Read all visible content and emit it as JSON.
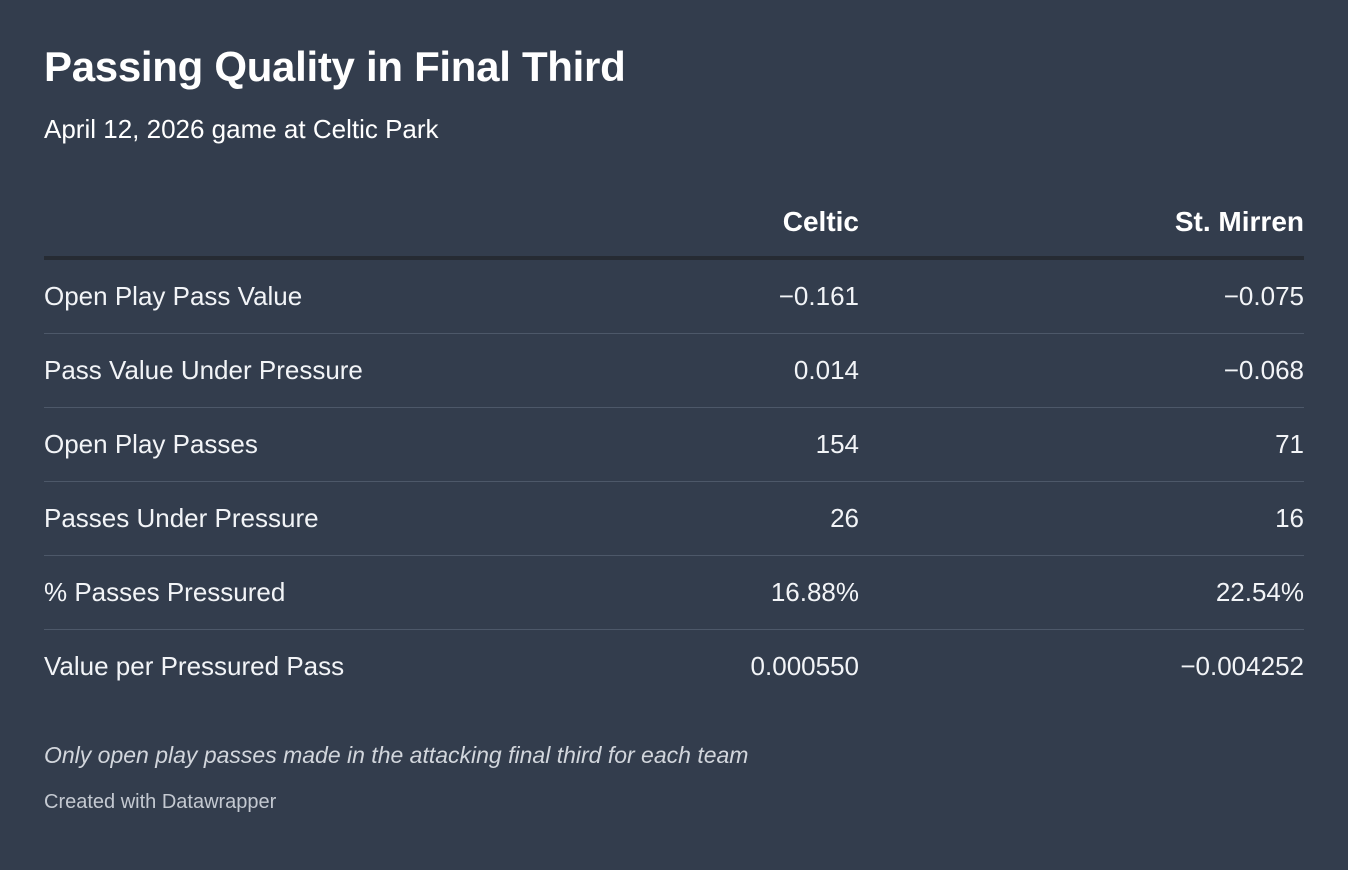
{
  "title": "Passing Quality in Final Third",
  "subtitle": "April 12, 2026 game at Celtic Park",
  "colors": {
    "background": "#333d4d",
    "header_rule": "#262b33",
    "row_rule": "#4d5869",
    "text": "#ffffff"
  },
  "chart_data": {
    "type": "table",
    "columns": [
      "",
      "Celtic",
      "St. Mirren"
    ],
    "rows": [
      {
        "label": "Open Play Pass Value",
        "celtic": "−0.161",
        "st_mirren": "−0.075"
      },
      {
        "label": "Pass Value Under Pressure",
        "celtic": "0.014",
        "st_mirren": "−0.068"
      },
      {
        "label": "Open Play Passes",
        "celtic": "154",
        "st_mirren": "71"
      },
      {
        "label": "Passes Under Pressure",
        "celtic": "26",
        "st_mirren": "16"
      },
      {
        "label": "% Passes Pressured",
        "celtic": "16.88%",
        "st_mirren": "22.54%"
      },
      {
        "label": "Value per Pressured Pass",
        "celtic": "0.000550",
        "st_mirren": "−0.004252"
      }
    ]
  },
  "notes": "Only open play passes made in the attacking final third for each team",
  "credit": "Created with Datawrapper"
}
